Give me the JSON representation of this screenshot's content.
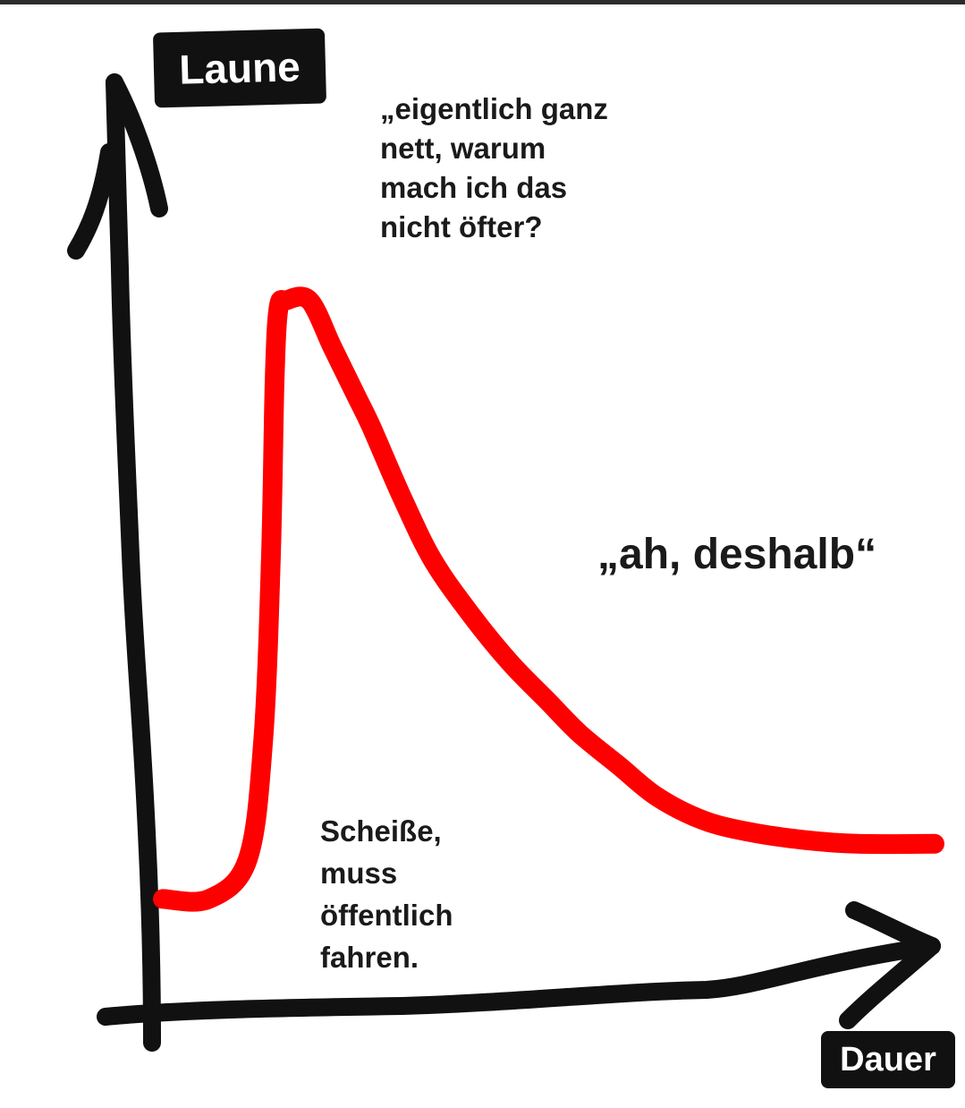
{
  "chart_data": {
    "type": "line",
    "ylabel": "Laune",
    "xlabel": "Dauer",
    "grid": false,
    "colors": {
      "curve": "#ff0000",
      "axes": "#111111",
      "label_background": "#111111",
      "label_text": "#ffffff"
    },
    "xlim": [
      0,
      10
    ],
    "ylim": [
      0,
      10
    ],
    "series": [
      {
        "x": [
          0,
          0.6,
          1.1,
          1.3,
          1.4,
          1.45,
          1.5,
          1.6,
          1.9,
          2.2,
          2.5,
          2.7,
          3.1,
          3.5,
          4.0,
          4.5,
          5.0,
          5.4,
          5.9,
          6.4,
          7.0,
          7.6,
          8.3,
          9.0,
          10.0
        ],
        "y": [
          1.2,
          1.2,
          1.7,
          3.2,
          5.5,
          7.8,
          8.7,
          8.8,
          8.8,
          8.2,
          7.6,
          7.2,
          6.3,
          5.5,
          4.8,
          4.2,
          3.7,
          3.3,
          2.9,
          2.5,
          2.2,
          2.05,
          1.95,
          1.9,
          1.9
        ]
      }
    ],
    "annotations": [
      {
        "id": "start",
        "text": "Scheiße,\nmuss\nöffentlich\nfahren."
      },
      {
        "id": "peak",
        "text": "„eigentlich ganz\nnett, warum\nmach ich das\nnicht öfter?"
      },
      {
        "id": "decline",
        "text": "„ah, deshalb“"
      }
    ]
  }
}
